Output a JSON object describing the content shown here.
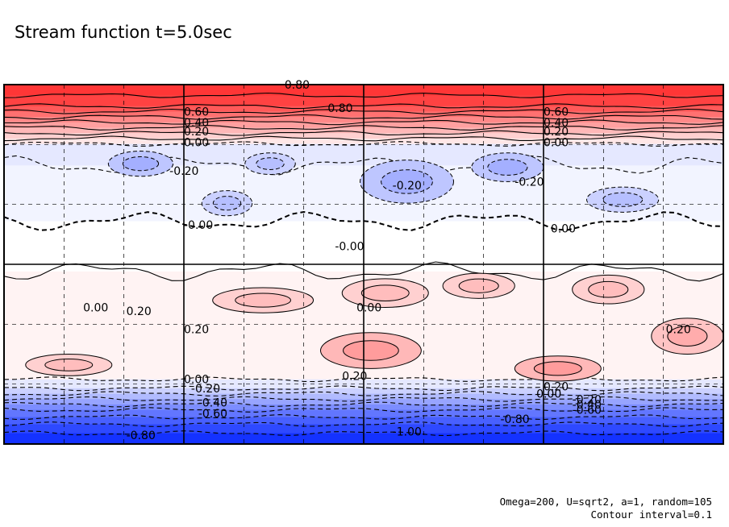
{
  "chart_data": {
    "type": "contour",
    "title": "Stream function t=5.0sec",
    "annotations": [
      "Omega=200, U=sqrt2, a=1, random=105",
      "Contour interval=0.1"
    ],
    "contour_interval": 0.1,
    "value_range": [
      -1.0,
      0.8
    ],
    "grid": true,
    "colormap": {
      "positive": "#ff2a2a",
      "zero": "#ffffff",
      "negative": "#1432ff"
    },
    "bands": [
      {
        "value": 0.85,
        "yTop": 0,
        "yBot": 0.03
      },
      {
        "value": 0.8,
        "yTop": 0.03,
        "yBot": 0.06
      },
      {
        "value": 0.7,
        "yTop": 0.06,
        "yBot": 0.075
      },
      {
        "value": 0.6,
        "yTop": 0.075,
        "yBot": 0.09
      },
      {
        "value": 0.5,
        "yTop": 0.09,
        "yBot": 0.105
      },
      {
        "value": 0.4,
        "yTop": 0.105,
        "yBot": 0.12
      },
      {
        "value": 0.3,
        "yTop": 0.12,
        "yBot": 0.135
      },
      {
        "value": 0.2,
        "yTop": 0.135,
        "yBot": 0.15
      },
      {
        "value": 0.1,
        "yTop": 0.15,
        "yBot": 0.165
      },
      {
        "value": -0.1,
        "yTop": 0.165,
        "yBot": 0.225
      },
      {
        "value": -0.05,
        "yTop": 0.225,
        "yBot": 0.38
      },
      {
        "value": 0.0,
        "yTop": 0.38,
        "yBot": 0.52
      },
      {
        "value": 0.05,
        "yTop": 0.52,
        "yBot": 0.82
      },
      {
        "value": -0.1,
        "yTop": 0.82,
        "yBot": 0.845
      },
      {
        "value": -0.2,
        "yTop": 0.845,
        "yBot": 0.86
      },
      {
        "value": -0.3,
        "yTop": 0.86,
        "yBot": 0.875
      },
      {
        "value": -0.4,
        "yTop": 0.875,
        "yBot": 0.89
      },
      {
        "value": -0.5,
        "yTop": 0.89,
        "yBot": 0.905
      },
      {
        "value": -0.6,
        "yTop": 0.905,
        "yBot": 0.925
      },
      {
        "value": -0.7,
        "yTop": 0.925,
        "yBot": 0.945
      },
      {
        "value": -0.8,
        "yTop": 0.945,
        "yBot": 0.97
      },
      {
        "value": -0.9,
        "yTop": 0.97,
        "yBot": 1.0
      }
    ],
    "blobs": [
      {
        "cx": 0.19,
        "cy": 0.22,
        "rx": 0.045,
        "ry": 0.035,
        "value": -0.25
      },
      {
        "cx": 0.37,
        "cy": 0.22,
        "rx": 0.035,
        "ry": 0.03,
        "value": -0.2
      },
      {
        "cx": 0.56,
        "cy": 0.27,
        "rx": 0.065,
        "ry": 0.06,
        "value": -0.25
      },
      {
        "cx": 0.7,
        "cy": 0.23,
        "rx": 0.05,
        "ry": 0.04,
        "value": -0.25
      },
      {
        "cx": 0.86,
        "cy": 0.32,
        "rx": 0.05,
        "ry": 0.035,
        "value": -0.2
      },
      {
        "cx": 0.31,
        "cy": 0.33,
        "rx": 0.035,
        "ry": 0.035,
        "value": -0.2
      },
      {
        "cx": 0.53,
        "cy": 0.58,
        "rx": 0.06,
        "ry": 0.04,
        "value": 0.2
      },
      {
        "cx": 0.36,
        "cy": 0.6,
        "rx": 0.07,
        "ry": 0.035,
        "value": 0.2
      },
      {
        "cx": 0.66,
        "cy": 0.56,
        "rx": 0.05,
        "ry": 0.035,
        "value": 0.2
      },
      {
        "cx": 0.84,
        "cy": 0.57,
        "rx": 0.05,
        "ry": 0.04,
        "value": 0.2
      },
      {
        "cx": 0.09,
        "cy": 0.78,
        "rx": 0.06,
        "ry": 0.03,
        "value": 0.2
      },
      {
        "cx": 0.51,
        "cy": 0.74,
        "rx": 0.07,
        "ry": 0.05,
        "value": 0.3
      },
      {
        "cx": 0.77,
        "cy": 0.79,
        "rx": 0.06,
        "ry": 0.035,
        "value": 0.3
      },
      {
        "cx": 0.95,
        "cy": 0.7,
        "rx": 0.05,
        "ry": 0.05,
        "value": 0.25
      }
    ],
    "contour_labels": [
      {
        "text": "0.80",
        "x": 0.39,
        "y": 0.0
      },
      {
        "text": "0.80",
        "x": 0.45,
        "y": 0.065
      },
      {
        "text": "0.60",
        "x": 0.25,
        "y": 0.075
      },
      {
        "text": "0.40",
        "x": 0.25,
        "y": 0.105
      },
      {
        "text": "0.20",
        "x": 0.25,
        "y": 0.13
      },
      {
        "text": "0.00",
        "x": 0.25,
        "y": 0.16
      },
      {
        "text": "0.60",
        "x": 0.75,
        "y": 0.075
      },
      {
        "text": "0.40",
        "x": 0.75,
        "y": 0.105
      },
      {
        "text": "0.20",
        "x": 0.75,
        "y": 0.13
      },
      {
        "text": "0.00",
        "x": 0.75,
        "y": 0.16
      },
      {
        "text": "-0.20",
        "x": 0.23,
        "y": 0.24
      },
      {
        "text": "-0.20",
        "x": 0.54,
        "y": 0.28
      },
      {
        "text": "-0.20",
        "x": 0.71,
        "y": 0.27
      },
      {
        "text": "-0.00",
        "x": 0.25,
        "y": 0.39
      },
      {
        "text": "-0.00",
        "x": 0.46,
        "y": 0.45
      },
      {
        "text": "0.00",
        "x": 0.76,
        "y": 0.4
      },
      {
        "text": "0.00",
        "x": 0.11,
        "y": 0.62
      },
      {
        "text": "0.00",
        "x": 0.49,
        "y": 0.62
      },
      {
        "text": "0.20",
        "x": 0.17,
        "y": 0.63
      },
      {
        "text": "0.20",
        "x": 0.25,
        "y": 0.68
      },
      {
        "text": "0.20",
        "x": 0.92,
        "y": 0.68
      },
      {
        "text": "0.20",
        "x": 0.47,
        "y": 0.81
      },
      {
        "text": "0.20",
        "x": 0.75,
        "y": 0.84
      },
      {
        "text": "0.00",
        "x": 0.25,
        "y": 0.82
      },
      {
        "text": "-0.20",
        "x": 0.26,
        "y": 0.845
      },
      {
        "text": "-0.40",
        "x": 0.27,
        "y": 0.885
      },
      {
        "text": "-0.60",
        "x": 0.27,
        "y": 0.915
      },
      {
        "text": "0.00",
        "x": 0.74,
        "y": 0.86
      },
      {
        "text": "-0.20",
        "x": 0.79,
        "y": 0.875
      },
      {
        "text": "-0.40",
        "x": 0.79,
        "y": 0.89
      },
      {
        "text": "-0.60",
        "x": 0.79,
        "y": 0.905
      },
      {
        "text": "-0.80",
        "x": 0.69,
        "y": 0.93
      },
      {
        "text": "-0.80",
        "x": 0.17,
        "y": 0.975
      },
      {
        "text": "-1.00",
        "x": 0.54,
        "y": 0.965
      }
    ]
  }
}
